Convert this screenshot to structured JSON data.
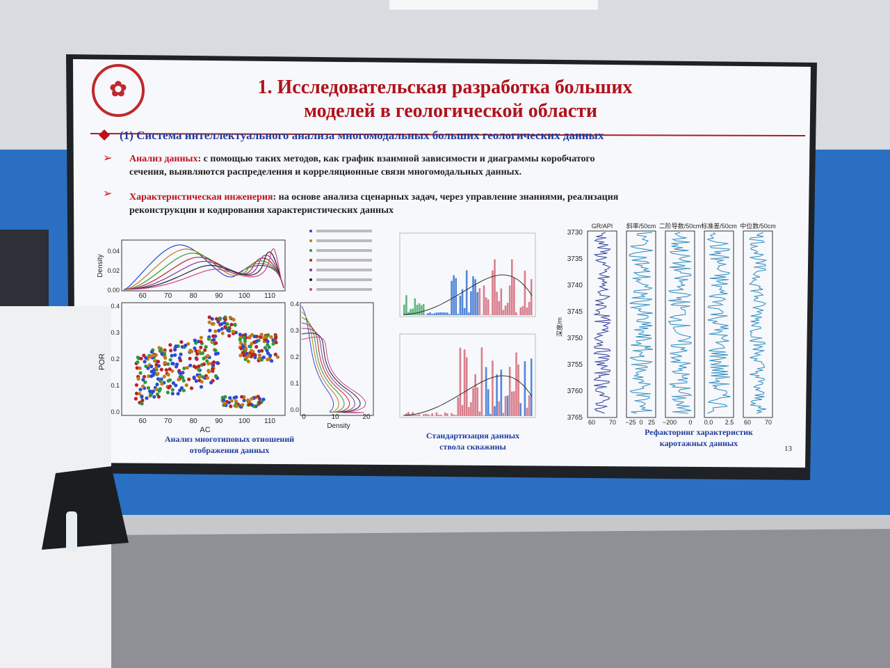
{
  "slide": {
    "title": [
      "1. Исследовательская разработка больших",
      "моделей в геологической области"
    ],
    "section": "(1) Система интеллектуального анализа многомодальных больших геологических данных",
    "bullets": [
      {
        "term": "Анализ данных",
        "lines": [
          ": с помощью таких методов, как график взаимной зависимости и диаграммы коробчатого",
          "сечения, выявляются распределения и корреляционные связи многомодальных данных."
        ]
      },
      {
        "term": "Характеристическая инженерия",
        "lines": [
          ": на основе анализа сценарных задач, через управление знаниями, реализация",
          "реконструкции и кодирования характеристических данных"
        ]
      }
    ],
    "figures": [
      {
        "caption": [
          "Анализ многотиповых отношений",
          "отображения данных"
        ],
        "x_label": "AC",
        "y_label": "POR",
        "density_label": "Density",
        "x_ticks": [
          "60",
          "70",
          "80",
          "90",
          "100",
          "110"
        ],
        "density_ticks": [
          "0.00",
          "0.02",
          "0.04"
        ],
        "por_ticks": [
          "0.0",
          "0.1",
          "0.2",
          "0.3",
          "0.4"
        ],
        "marginal_x_ticks": [
          "0",
          "10",
          "20"
        ]
      },
      {
        "caption": [
          "Стандартизация данных",
          "ствола скважины"
        ]
      },
      {
        "caption": [
          "Рефакторинг характеристик",
          "каротажных данных"
        ],
        "y_label": "深度/m",
        "depth_ticks": [
          "3730",
          "3735",
          "3740",
          "3745",
          "3750",
          "3755",
          "3760",
          "3765"
        ],
        "tracks": [
          {
            "header": "GR/API",
            "ticks": [
              "60",
              "70"
            ]
          },
          {
            "header": "斜率/50cm",
            "ticks": [
              "−25",
              "0",
              "25"
            ]
          },
          {
            "header": "二阶导数/50cm",
            "ticks": [
              "−200",
              "0"
            ]
          },
          {
            "header": "标准差/50cm",
            "ticks": [
              "0.0",
              "2.5"
            ]
          },
          {
            "header": "中位数/50cm",
            "ticks": [
              "60",
              "70"
            ]
          }
        ]
      }
    ],
    "page_number": "13"
  }
}
